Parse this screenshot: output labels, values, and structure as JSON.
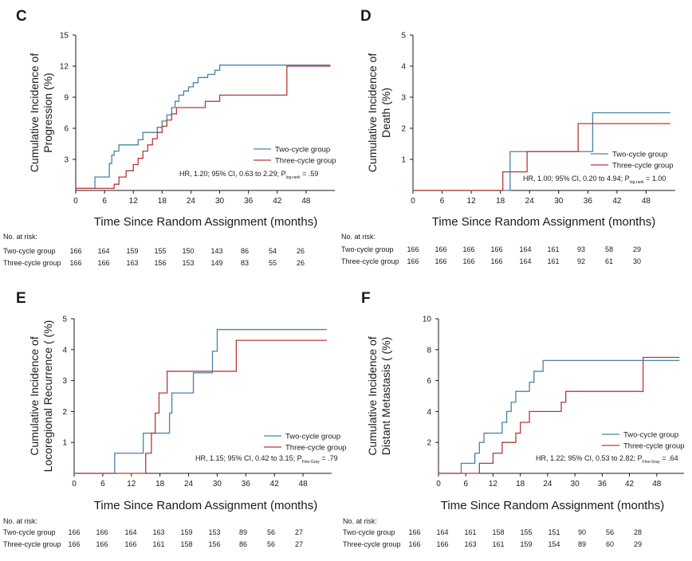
{
  "colors": {
    "two_cycle": "#4a82a8",
    "three_cycle": "#b8393b",
    "axis": "#1a1a1a"
  },
  "chart_data": [
    {
      "type": "line",
      "panel": "C",
      "ylabel": [
        "Cumulative Incidence of",
        "Progression (%)"
      ],
      "xlabel": "Time Since Random Assignment (months)",
      "xlim": [
        0,
        54
      ],
      "ylim": [
        0,
        15
      ],
      "xticks": [
        0,
        6,
        12,
        18,
        24,
        30,
        36,
        42,
        48
      ],
      "yticks": [
        3,
        6,
        9,
        12,
        15
      ],
      "series": [
        {
          "name": "Two-cycle group",
          "color_key": "two_cycle",
          "x": [
            0,
            4,
            7,
            7.5,
            8,
            9,
            12,
            13,
            14,
            16,
            17,
            18,
            19,
            20,
            20.7,
            21.5,
            22.5,
            23.5,
            24.5,
            25.5,
            26.5,
            27.5,
            29,
            30,
            53
          ],
          "y": [
            0.2,
            1.3,
            2.6,
            3.4,
            3.8,
            4.4,
            4.4,
            4.9,
            5.6,
            5.6,
            6.1,
            6.7,
            7.3,
            8.0,
            8.6,
            9.2,
            9.6,
            10.0,
            10.4,
            10.9,
            10.9,
            11.2,
            11.6,
            12.1,
            12.1
          ]
        },
        {
          "name": "Three-cycle group",
          "color_key": "three_cycle",
          "x": [
            0,
            8,
            9,
            10.5,
            12,
            13,
            14,
            15,
            16,
            17,
            18,
            19,
            20,
            21,
            23,
            27,
            30,
            44,
            53
          ],
          "y": [
            0.2,
            0.6,
            1.3,
            1.9,
            2.5,
            3.1,
            3.8,
            4.4,
            5.0,
            5.6,
            6.2,
            6.8,
            7.4,
            8.0,
            8.0,
            8.6,
            9.2,
            12.0,
            12.1
          ]
        }
      ],
      "hr": {
        "main": "HR, 1.20; 95% CI, 0.63 to 2.29; P",
        "sub": "log-rank",
        "tail": " = .59"
      },
      "risk": {
        "title": "No. at risk:",
        "rows": [
          {
            "label": "Two-cycle group",
            "values": [
              "166",
              "164",
              "159",
              "155",
              "150",
              "143",
              "86",
              "54",
              "26"
            ]
          },
          {
            "label": "Three-cycle group",
            "values": [
              "166",
              "166",
              "163",
              "156",
              "153",
              "149",
              "83",
              "55",
              "26"
            ]
          }
        ]
      }
    },
    {
      "type": "line",
      "panel": "D",
      "ylabel": [
        "Cumulative Incidence of",
        "Death (%)"
      ],
      "xlabel": "Time Since Random Assignment (months)",
      "xlim": [
        0,
        54
      ],
      "ylim": [
        0,
        5
      ],
      "xticks": [
        0,
        6,
        12,
        18,
        24,
        30,
        36,
        42,
        48
      ],
      "yticks": [
        1,
        2,
        3,
        4,
        5
      ],
      "series": [
        {
          "name": "Two-cycle group",
          "color_key": "two_cycle",
          "x": [
            0,
            19,
            20,
            37,
            53
          ],
          "y": [
            0,
            0,
            1.25,
            2.5,
            2.5
          ]
        },
        {
          "name": "Three-cycle group",
          "color_key": "three_cycle",
          "x": [
            0,
            18.5,
            20,
            23.5,
            34,
            53
          ],
          "y": [
            0,
            0.6,
            0.6,
            1.25,
            2.15,
            2.15
          ]
        }
      ],
      "hr": {
        "main": "HR, 1.00; 95% CI, 0.20 to 4.94; P",
        "sub": "log-rank",
        "tail": " = 1.00"
      },
      "risk": {
        "title": "No. at risk:",
        "rows": [
          {
            "label": "Two-cycle group",
            "values": [
              "166",
              "166",
              "166",
              "166",
              "164",
              "161",
              "93",
              "58",
              "29"
            ]
          },
          {
            "label": "Three-cycle group",
            "values": [
              "166",
              "166",
              "166",
              "166",
              "164",
              "161",
              "92",
              "61",
              "30"
            ]
          }
        ]
      }
    },
    {
      "type": "line",
      "panel": "E",
      "ylabel": [
        "Cumulative Incidence of",
        "Locoregional Recurrence ( (%)"
      ],
      "xlabel": "Time Since Random Assignment (months)",
      "xlim": [
        0,
        54
      ],
      "ylim": [
        0,
        5
      ],
      "xticks": [
        0,
        6,
        12,
        18,
        24,
        30,
        36,
        42,
        48
      ],
      "yticks": [
        1,
        2,
        3,
        4,
        5
      ],
      "series": [
        {
          "name": "Two-cycle group",
          "color_key": "two_cycle",
          "x": [
            0,
            8.5,
            14.5,
            16,
            20,
            20.5,
            25,
            29,
            30,
            53
          ],
          "y": [
            0,
            0.65,
            1.3,
            1.3,
            1.95,
            2.6,
            3.25,
            3.95,
            4.65,
            4.65
          ]
        },
        {
          "name": "Three-cycle group",
          "color_key": "three_cycle",
          "x": [
            0,
            15,
            16.2,
            17,
            17.8,
            19.5,
            34,
            53
          ],
          "y": [
            0,
            0.65,
            1.3,
            1.95,
            2.6,
            3.3,
            4.3,
            4.3
          ]
        }
      ],
      "hr": {
        "main": "HR, 1.15; 95% CI, 0.42 to 3.15; P",
        "sub": "Fine-Gray",
        "tail": " = .79"
      },
      "risk": {
        "title": "No. at risk:",
        "rows": [
          {
            "label": "Two-cycle group",
            "values": [
              "166",
              "166",
              "164",
              "163",
              "159",
              "153",
              "89",
              "56",
              "27"
            ]
          },
          {
            "label": "Three-cycle group",
            "values": [
              "166",
              "166",
              "166",
              "161",
              "158",
              "156",
              "86",
              "56",
              "27"
            ]
          }
        ]
      }
    },
    {
      "type": "line",
      "panel": "F",
      "ylabel": [
        "Cumulative Incidence of",
        "Distant Metastasis ( (%)"
      ],
      "xlabel": "Time Since Random Assignment (months)",
      "xlim": [
        0,
        54
      ],
      "ylim": [
        0,
        10
      ],
      "xticks": [
        0,
        6,
        12,
        18,
        24,
        30,
        36,
        42,
        48
      ],
      "yticks": [
        2,
        4,
        6,
        8,
        10
      ],
      "series": [
        {
          "name": "Two-cycle group",
          "color_key": "two_cycle",
          "x": [
            0,
            5,
            8,
            9,
            10,
            11,
            12,
            14,
            15,
            16,
            17,
            18,
            20,
            21,
            22,
            23,
            24,
            25,
            53
          ],
          "y": [
            0,
            0.65,
            1.3,
            2.0,
            2.6,
            2.6,
            2.6,
            3.3,
            4.0,
            4.6,
            5.3,
            5.3,
            5.9,
            6.6,
            6.6,
            7.3,
            7.3,
            7.3,
            7.3
          ]
        },
        {
          "name": "Three-cycle group",
          "color_key": "three_cycle",
          "x": [
            0,
            9,
            10,
            12,
            14,
            17,
            18,
            20,
            21,
            27,
            28,
            45,
            53
          ],
          "y": [
            0,
            0.65,
            0.65,
            1.3,
            2.0,
            2.6,
            3.3,
            4.0,
            4.0,
            4.6,
            5.3,
            7.5,
            7.5
          ]
        }
      ],
      "hr": {
        "main": "HR, 1.22; 95% CI, 0.53 to 2.82; P",
        "sub": "Fine-Gray",
        "tail": " = .64"
      },
      "risk": {
        "title": "No. at risk:",
        "rows": [
          {
            "label": "Two-cycle group",
            "values": [
              "166",
              "164",
              "161",
              "158",
              "155",
              "151",
              "90",
              "56",
              "28"
            ]
          },
          {
            "label": "Three-cycle group",
            "values": [
              "166",
              "166",
              "163",
              "161",
              "159",
              "154",
              "89",
              "60",
              "29"
            ]
          }
        ]
      }
    }
  ]
}
